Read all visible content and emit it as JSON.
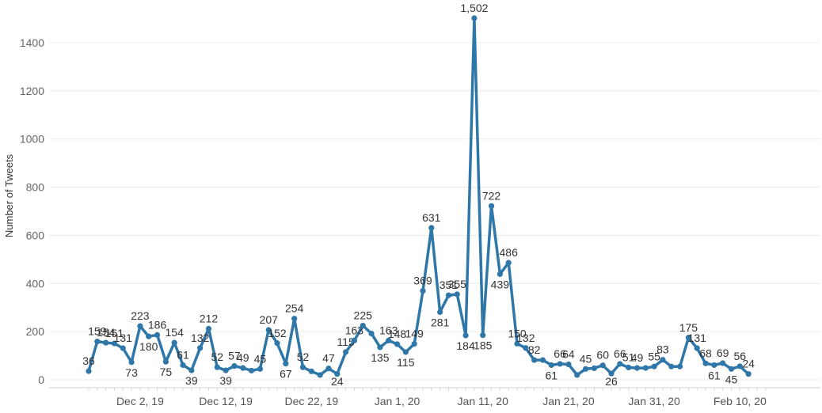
{
  "chart_data": {
    "type": "line",
    "title": "",
    "xlabel": "",
    "ylabel": "Number of Tweets",
    "ylim": [
      0,
      1550
    ],
    "yticks": [
      0,
      200,
      400,
      600,
      800,
      1000,
      1200,
      1400
    ],
    "xticks": [
      "Dec 2, 19",
      "Dec 12, 19",
      "Dec 22, 19",
      "Jan 1, 20",
      "Jan 11, 20",
      "Jan 21, 20",
      "Jan 31, 20",
      "Feb 10, 20"
    ],
    "grid": "horizontal",
    "color": "#2e77a8",
    "x": [
      "Nov 26, 19",
      "Nov 27, 19",
      "Nov 28, 19",
      "Nov 29, 19",
      "Nov 30, 19",
      "Dec 1, 19",
      "Dec 2, 19",
      "Dec 3, 19",
      "Dec 4, 19",
      "Dec 5, 19",
      "Dec 6, 19",
      "Dec 7, 19",
      "Dec 8, 19",
      "Dec 9, 19",
      "Dec 10, 19",
      "Dec 11, 19",
      "Dec 12, 19",
      "Dec 13, 19",
      "Dec 14, 19",
      "Dec 15, 19",
      "Dec 16, 19",
      "Dec 17, 19",
      "Dec 18, 19",
      "Dec 19, 19",
      "Dec 20, 19",
      "Dec 21, 19",
      "Dec 22, 19",
      "Dec 23, 19",
      "Dec 24, 19",
      "Dec 25, 19",
      "Dec 26, 19",
      "Dec 27, 19",
      "Dec 28, 19",
      "Dec 29, 19",
      "Dec 30, 19",
      "Dec 31, 19",
      "Jan 1, 20",
      "Jan 2, 20",
      "Jan 3, 20",
      "Jan 4, 20",
      "Jan 5, 20",
      "Jan 6, 20",
      "Jan 7, 20",
      "Jan 8, 20",
      "Jan 9, 20",
      "Jan 10, 20",
      "Jan 11, 20",
      "Jan 12, 20",
      "Jan 13, 20",
      "Jan 14, 20",
      "Jan 15, 20",
      "Jan 16, 20",
      "Jan 17, 20",
      "Jan 18, 20",
      "Jan 19, 20",
      "Jan 20, 20",
      "Jan 21, 20",
      "Jan 22, 20",
      "Jan 23, 20",
      "Jan 24, 20",
      "Jan 25, 20",
      "Jan 26, 20",
      "Jan 27, 20",
      "Jan 28, 20",
      "Jan 29, 20",
      "Jan 30, 20",
      "Jan 31, 20",
      "Feb 1, 20",
      "Feb 2, 20",
      "Feb 3, 20",
      "Feb 4, 20",
      "Feb 5, 20",
      "Feb 6, 20",
      "Feb 7, 20",
      "Feb 8, 20",
      "Feb 9, 20",
      "Feb 10, 20",
      "Feb 11, 20",
      "Feb 12, 20",
      "Feb 13, 20"
    ],
    "values": [
      36,
      159,
      154,
      151,
      131,
      73,
      223,
      180,
      186,
      75,
      154,
      61,
      39,
      132,
      212,
      52,
      39,
      57,
      49,
      38,
      45,
      207,
      152,
      67,
      254,
      52,
      35,
      20,
      47,
      24,
      115,
      163,
      225,
      192,
      135,
      163,
      148,
      115,
      149,
      369,
      631,
      281,
      351,
      355,
      184,
      1502,
      185,
      722,
      439,
      486,
      150,
      132,
      82,
      82,
      61,
      66,
      64,
      20,
      45,
      48,
      60,
      26,
      66,
      51,
      49,
      49,
      55,
      83,
      55,
      55,
      175,
      131,
      68,
      61,
      69,
      45,
      56,
      24,
      null,
      null
    ],
    "labels": [
      "36",
      "159",
      "154",
      "151",
      "131",
      "73",
      "223",
      "180",
      "186",
      "75",
      "154",
      "61",
      "39",
      "132",
      "212",
      "52",
      "39",
      "57",
      "49",
      "",
      "45",
      "207",
      "152",
      "67",
      "254",
      "52",
      "",
      "",
      "47",
      "24",
      "115",
      "163",
      "225",
      "",
      "135",
      "163",
      "148",
      "115",
      "149",
      "369",
      "631",
      "281",
      "351",
      "355",
      "184",
      "1,502",
      "185",
      "722",
      "439",
      "486",
      "150",
      "132",
      "82",
      "",
      "61",
      "66",
      "64",
      "",
      "45",
      "",
      "60",
      "26",
      "66",
      "51",
      "49",
      "",
      "55",
      "83",
      "",
      "",
      "175",
      "131",
      "68",
      "61",
      "69",
      "45",
      "56",
      "24",
      "",
      ""
    ]
  }
}
